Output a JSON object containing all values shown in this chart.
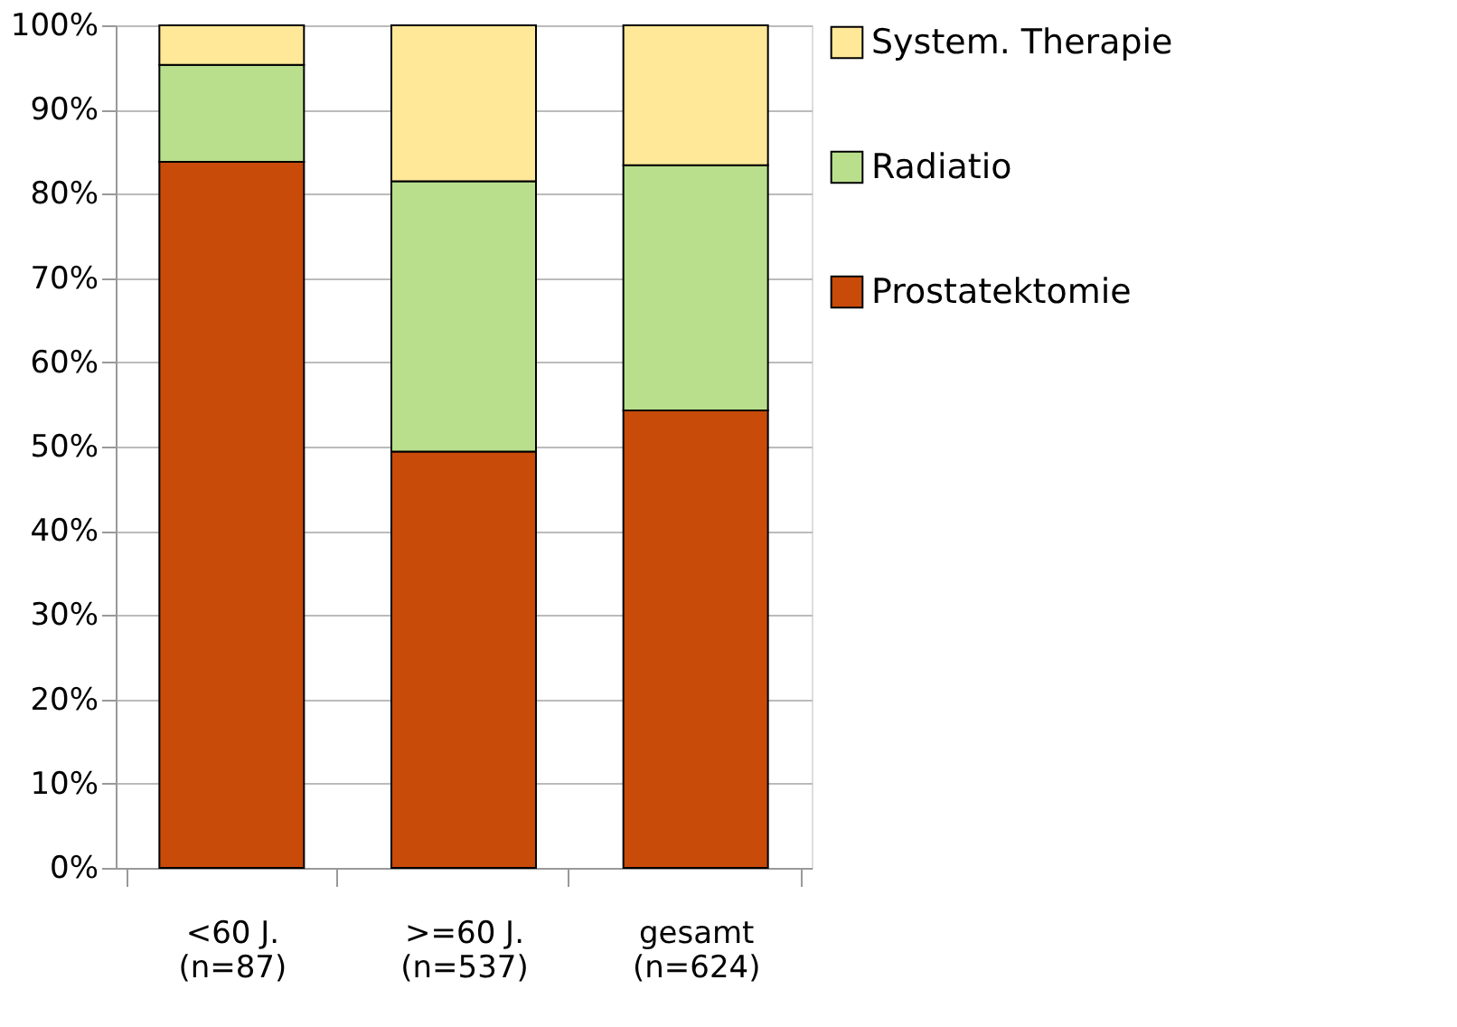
{
  "chart_data": {
    "type": "bar",
    "stacked": true,
    "categories": [
      "<60 J.\n(n=87)",
      ">=60 J.\n(n=537)",
      "gesamt\n(n=624)"
    ],
    "series": [
      {
        "name": "Prostatektomie",
        "color": "#c84b0a",
        "values": [
          83.8,
          49.4,
          54.3
        ]
      },
      {
        "name": "Radiatio",
        "color": "#b9df8d",
        "values": [
          11.5,
          32.1,
          29.1
        ]
      },
      {
        "name": "System. Therapie",
        "color": "#ffe898",
        "values": [
          4.7,
          18.5,
          16.6
        ]
      }
    ],
    "ylim": [
      0,
      100
    ],
    "yticks": [
      {
        "value": 0,
        "label": "0%"
      },
      {
        "value": 10,
        "label": "10%"
      },
      {
        "value": 20,
        "label": "20%"
      },
      {
        "value": 30,
        "label": "30%"
      },
      {
        "value": 40,
        "label": "40%"
      },
      {
        "value": 50,
        "label": "50%"
      },
      {
        "value": 60,
        "label": "60%"
      },
      {
        "value": 70,
        "label": "70%"
      },
      {
        "value": 80,
        "label": "80%"
      },
      {
        "value": 90,
        "label": "90%"
      },
      {
        "value": 100,
        "label": "100%"
      }
    ],
    "grid": "y",
    "legend": "right"
  }
}
